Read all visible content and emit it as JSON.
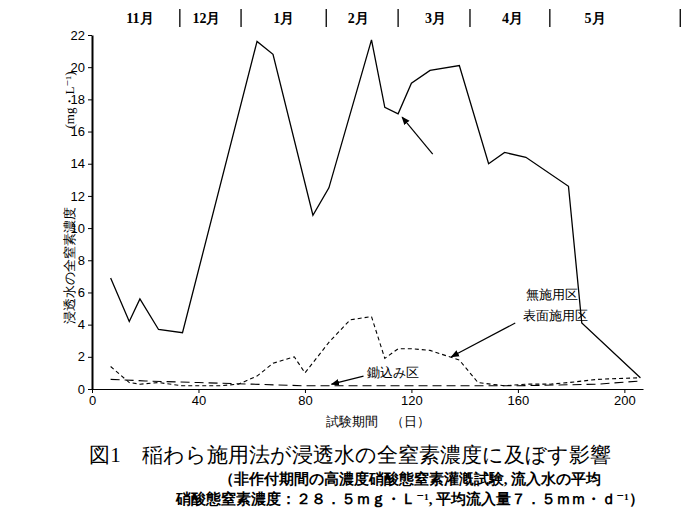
{
  "chart_data": {
    "type": "line",
    "title": "図1　稲わら施用法が浸透水の全窒素濃度に及ぼす影響",
    "subtitle": [
      "（非作付期間の高濃度硝酸態窒素灌漑試験, 流入水の平均",
      "硝酸態窒素濃度：２８．５ｍｇ・Ｌ⁻¹, 平均流入量７．５ｍｍ・ｄ⁻¹）"
    ],
    "x_label": "試験期間　（日）",
    "y_label": "浸透水の全窒素濃度",
    "y_unit": "(mg・L⁻¹)",
    "xlim": [
      0,
      207
    ],
    "xticks": [
      0,
      40,
      80,
      120,
      160,
      200
    ],
    "ylim": [
      0,
      22
    ],
    "yticks": [
      0,
      2,
      4,
      6,
      8,
      10,
      12,
      14,
      16,
      18,
      20,
      22
    ],
    "grid": false,
    "month_axis": {
      "labels": [
        "11月",
        "12月",
        "1月",
        "2月",
        "3月",
        "4月",
        "5月"
      ],
      "positions": [
        18,
        43,
        72,
        100,
        129,
        158,
        189
      ],
      "boundaries": [
        33,
        56,
        88,
        115,
        142,
        172,
        221
      ]
    },
    "series": [
      {
        "name": "無施用区",
        "color": "#000000",
        "line_style": "solid",
        "x": [
          7,
          14,
          18,
          25,
          34,
          62,
          68,
          83,
          89,
          105,
          110,
          115,
          120,
          127,
          138,
          149,
          155,
          163,
          179,
          184,
          206
        ],
        "values": [
          6.9,
          4.2,
          5.6,
          3.7,
          3.5,
          21.6,
          20.8,
          10.8,
          12.5,
          21.7,
          17.5,
          17.1,
          19.0,
          19.8,
          20.1,
          14.0,
          14.7,
          14.4,
          12.6,
          4.1,
          0.7
        ]
      },
      {
        "name": "表面施用区",
        "color": "#000000",
        "line_style": "dashed",
        "x": [
          7,
          14,
          18,
          25,
          34,
          48,
          55,
          62,
          68,
          76,
          80,
          89,
          97,
          105,
          110,
          115,
          120,
          127,
          138,
          145,
          155,
          163,
          172,
          179,
          190,
          206
        ],
        "values": [
          1.4,
          0.4,
          0.3,
          0.4,
          0.2,
          0.2,
          0.3,
          0.8,
          1.6,
          2.0,
          1.0,
          2.9,
          4.3,
          4.5,
          1.9,
          2.5,
          2.5,
          2.4,
          1.8,
          0.4,
          0.2,
          0.3,
          0.3,
          0.4,
          0.6,
          0.7
        ]
      },
      {
        "name": "鋤込み区",
        "color": "#000000",
        "line_style": "longdash",
        "x": [
          7,
          20,
          40,
          60,
          80,
          120,
          160,
          190,
          206
        ],
        "values": [
          0.6,
          0.5,
          0.4,
          0.3,
          0.2,
          0.2,
          0.2,
          0.3,
          0.5
        ]
      }
    ]
  }
}
